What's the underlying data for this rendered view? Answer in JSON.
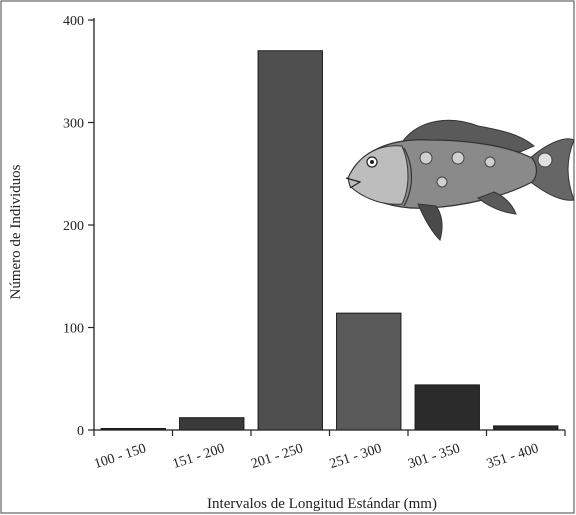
{
  "chart_data": {
    "type": "bar",
    "title": "",
    "xlabel": "Intervalos de Longitud Estándar (mm)",
    "ylabel": "Número de Individuos",
    "categories": [
      "100 - 150",
      "151 - 200",
      "201 - 250",
      "251 - 300",
      "301 - 350",
      "351 - 400"
    ],
    "values": [
      1,
      12,
      370,
      114,
      44,
      4
    ],
    "ylim": [
      0,
      400
    ],
    "yticks": [
      "0",
      "100",
      "200",
      "300",
      "400"
    ],
    "bar_colors": [
      "#2a2a2a",
      "#3a3a3a",
      "#4f4f4f",
      "#5a5a5a",
      "#2b2b2b",
      "#2a2a2a"
    ],
    "grid": false,
    "legend": "none",
    "illustration": "fish-illustration"
  }
}
